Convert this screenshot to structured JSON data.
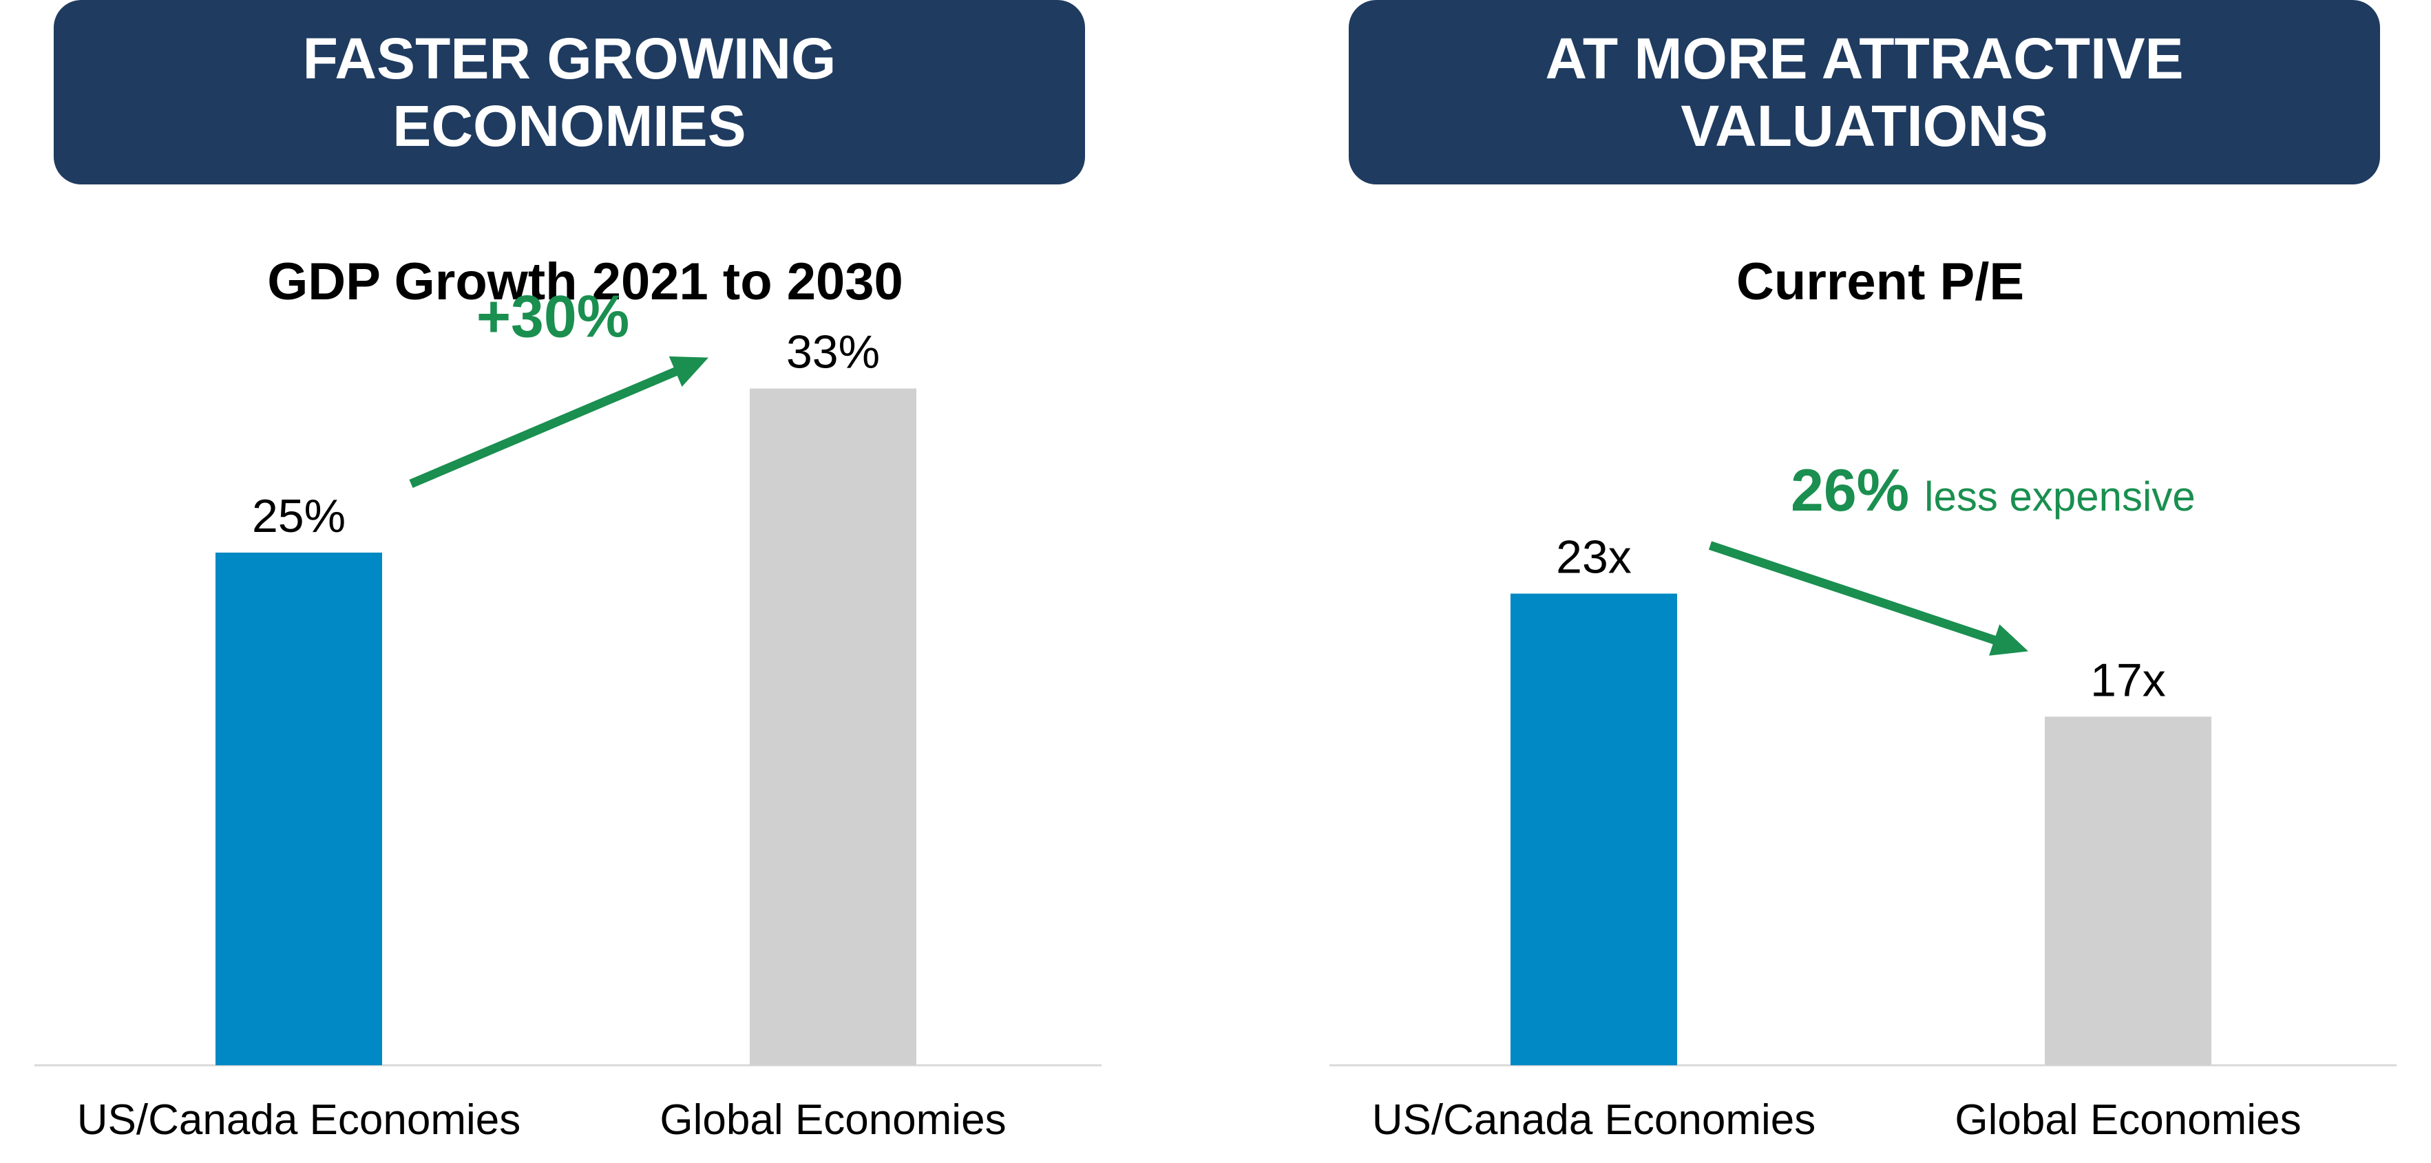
{
  "chart_data": [
    {
      "type": "bar",
      "header": [
        "FASTER GROWING",
        "ECONOMIES"
      ],
      "title": "GDP Growth 2021 to 2030",
      "categories": [
        "US/Canada Economies",
        "Global Economies"
      ],
      "values": [
        25,
        33
      ],
      "value_labels": [
        "25%",
        "33%"
      ],
      "ylim": [
        0,
        40
      ],
      "grid": false,
      "colors": [
        "#0089c4",
        "#d1d0d0"
      ],
      "annotation": {
        "direction": "up",
        "bold": "+30%",
        "text": "",
        "color": "#1a8f4f"
      }
    },
    {
      "type": "bar",
      "header": [
        "AT MORE ATTRACTIVE",
        "VALUATIONS"
      ],
      "title": "Current P/E",
      "categories": [
        "US/Canada Economies",
        "Global Economies"
      ],
      "values": [
        23,
        17
      ],
      "value_labels": [
        "23x",
        "17x"
      ],
      "ylim": [
        0,
        40
      ],
      "grid": false,
      "colors": [
        "#0089c4",
        "#d1d0d0"
      ],
      "annotation": {
        "direction": "down",
        "bold": "26%",
        "text": "less expensive",
        "color": "#1a8f4f"
      }
    }
  ],
  "theme": {
    "header_bg": "#1f3b60",
    "header_text": "#ffffff",
    "axis_line": "#d9d9d9"
  }
}
